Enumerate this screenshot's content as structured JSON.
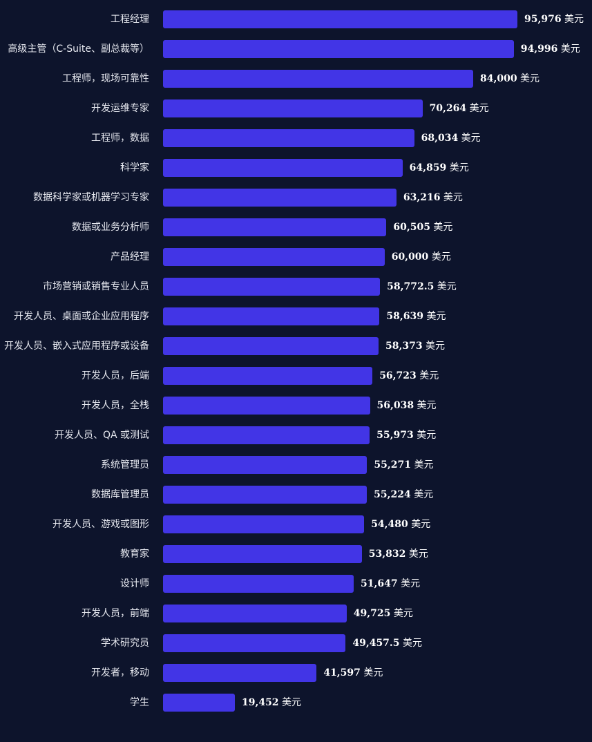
{
  "colors": {
    "background": "#0d142c",
    "bar": "#4235e6",
    "label_text": "#e6e8ef",
    "value_text": "#ffffff"
  },
  "chart_data": {
    "type": "bar",
    "orientation": "horizontal",
    "title": "",
    "xlabel": "",
    "ylabel": "",
    "unit": "美元",
    "xlim": [
      0,
      100000
    ],
    "grid": false,
    "categories": [
      "工程经理",
      "高级主管（C-Suite、副总裁等）",
      "工程师，现场可靠性",
      "开发运维专家",
      "工程师，数据",
      "科学家",
      "数据科学家或机器学习专家",
      "数据或业务分析师",
      "产品经理",
      "市场营销或销售专业人员",
      "开发人员、桌面或企业应用程序",
      "开发人员、嵌入式应用程序或设备",
      "开发人员，后端",
      "开发人员，全栈",
      "开发人员、QA 或测试",
      "系统管理员",
      "数据库管理员",
      "开发人员、游戏或图形",
      "教育家",
      "设计师",
      "开发人员，前端",
      "学术研究员",
      "开发者，移动",
      "学生"
    ],
    "values": [
      95976,
      94996,
      84000,
      70264,
      68034,
      64859,
      63216,
      60505,
      60000,
      58772.5,
      58639,
      58373,
      56723,
      56038,
      55973,
      55271,
      55224,
      54480,
      53832,
      51647,
      49725,
      49457.5,
      41597,
      19452
    ],
    "value_labels": [
      "95,976",
      "94,996",
      "84,000",
      "70,264",
      "68,034",
      "64,859",
      "63,216",
      "60,505",
      "60,000",
      "58,772.5",
      "58,639",
      "58,373",
      "56,723",
      "56,038",
      "55,973",
      "55,271",
      "55,224",
      "54,480",
      "53,832",
      "51,647",
      "49,725",
      "49,457.5",
      "41,597",
      "19,452"
    ]
  }
}
